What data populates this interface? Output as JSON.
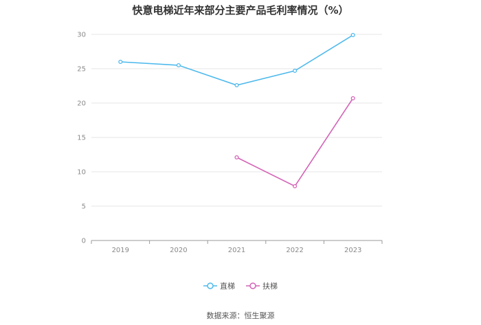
{
  "chart_data": {
    "type": "line",
    "title": "快意电梯近年来部分主要产品毛利率情况（%）",
    "xlabel": "",
    "ylabel": "",
    "categories": [
      "2019",
      "2020",
      "2021",
      "2022",
      "2023"
    ],
    "ylim": [
      0,
      30
    ],
    "yticks": [
      0,
      5,
      10,
      15,
      20,
      25,
      30
    ],
    "grid": true,
    "legend_position": "bottom",
    "series": [
      {
        "name": "直梯",
        "color": "#4db9ec",
        "values": [
          26.0,
          25.5,
          22.6,
          24.7,
          29.9
        ]
      },
      {
        "name": "扶梯",
        "color": "#d462b6",
        "values": [
          null,
          null,
          12.1,
          7.9,
          20.7
        ]
      }
    ]
  },
  "source_note": "数据来源：恒生聚源"
}
